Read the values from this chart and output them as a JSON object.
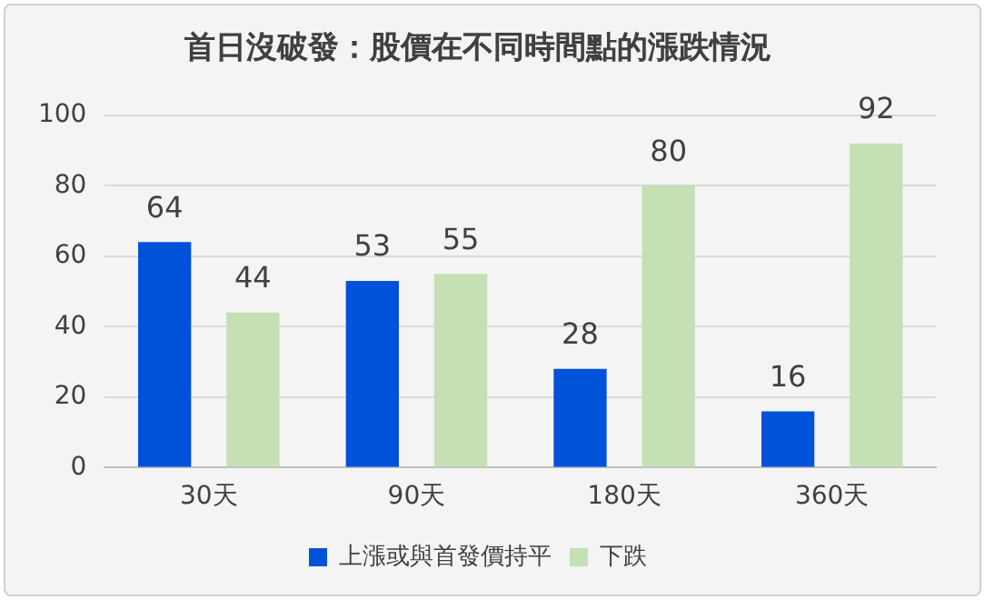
{
  "chart_data": {
    "type": "bar",
    "title": "首日沒破發：股價在不同時間點的漲跌情況",
    "categories": [
      "30天",
      "90天",
      "180天",
      "360天"
    ],
    "series": [
      {
        "name": "上漲或與首發價持平",
        "color": "#0052d9",
        "values": [
          64,
          53,
          28,
          16
        ]
      },
      {
        "name": "下跌",
        "color": "#c5e0b4",
        "values": [
          44,
          55,
          80,
          92
        ]
      }
    ],
    "ylim": [
      0,
      100
    ],
    "yticks": [
      0,
      20,
      40,
      60,
      80,
      100
    ],
    "grid": "y",
    "legend": "bottom",
    "data_labels": true
  }
}
